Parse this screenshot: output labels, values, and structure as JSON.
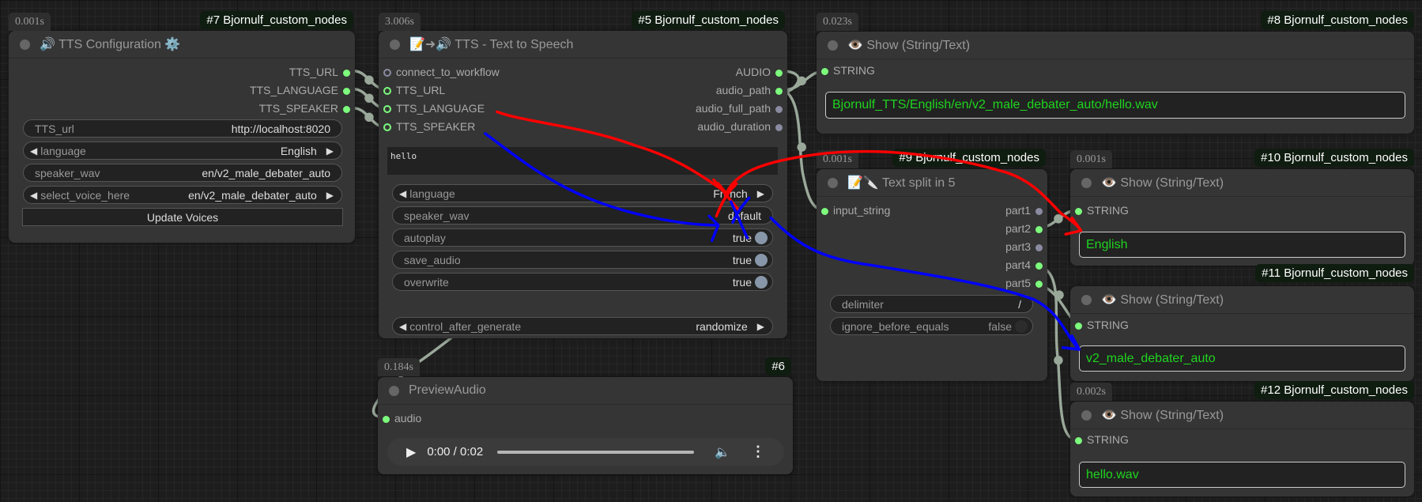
{
  "colors": {
    "connected_slot": "#7dfc7d",
    "unconnected_slot": "#8a8aa0",
    "output_text": "#1fd51f",
    "annotation_red": "#ff0000",
    "annotation_blue": "#0000ff",
    "link": "#9aa89a"
  },
  "node7": {
    "time": "0.001s",
    "badge": "#7 Bjornulf_custom_nodes",
    "title": "🔊 TTS Configuration ⚙️",
    "outputs": [
      "TTS_URL",
      "TTS_LANGUAGE",
      "TTS_SPEAKER"
    ],
    "widgets": [
      {
        "label": "TTS_url",
        "value": "http://localhost:8020"
      },
      {
        "label": "language",
        "value": "English"
      },
      {
        "label": "speaker_wav",
        "value": "en/v2_male_debater_auto"
      },
      {
        "label": "select_voice_here",
        "value": "en/v2_male_debater_auto"
      }
    ],
    "button": "Update Voices"
  },
  "node5": {
    "time": "3.006s",
    "badge": "#5 Bjornulf_custom_nodes",
    "title": "📝➜🔊 TTS - Text to Speech",
    "inputs": [
      "connect_to_workflow",
      "TTS_URL",
      "TTS_LANGUAGE",
      "TTS_SPEAKER"
    ],
    "outputs": [
      "AUDIO",
      "audio_path",
      "audio_full_path",
      "audio_duration"
    ],
    "text": "hello",
    "widgets": [
      {
        "label": "language",
        "value": "French"
      },
      {
        "label": "speaker_wav",
        "value": "default"
      },
      {
        "label": "autoplay",
        "value": "true"
      },
      {
        "label": "save_audio",
        "value": "true"
      },
      {
        "label": "overwrite",
        "value": "true"
      },
      {
        "label": "control_after_generate",
        "value": "randomize"
      }
    ]
  },
  "node6": {
    "time": "0.184s",
    "badge": "#6",
    "title": "PreviewAudio",
    "input": "audio",
    "player": {
      "time": "0:00 / 0:02",
      "progress": 0
    }
  },
  "node8": {
    "time": "0.023s",
    "badge": "#8 Bjornulf_custom_nodes",
    "title": "👁️ Show (String/Text)",
    "input": "STRING",
    "value": "Bjornulf_TTS/English/en/v2_male_debater_auto/hello.wav"
  },
  "node9": {
    "time": "0.001s",
    "badge": "#9 Bjornulf_custom_nodes",
    "title": "📝🔪 Text split in 5",
    "input": "input_string",
    "outputs": [
      "part1",
      "part2",
      "part3",
      "part4",
      "part5"
    ],
    "widgets": [
      {
        "label": "delimiter",
        "value": "/"
      },
      {
        "label": "ignore_before_equals",
        "value": "false"
      }
    ]
  },
  "node10": {
    "time": "0.001s",
    "badge": "#10 Bjornulf_custom_nodes",
    "title": "👁️ Show (String/Text)",
    "input": "STRING",
    "value": "English"
  },
  "node11": {
    "badge": "#11 Bjornulf_custom_nodes",
    "title": "👁️ Show (String/Text)",
    "input": "STRING",
    "value": "v2_male_debater_auto"
  },
  "node12": {
    "time": "0.002s",
    "badge": "#12 Bjornulf_custom_nodes",
    "title": "👁️ Show (String/Text)",
    "input": "STRING",
    "value": "hello.wav"
  }
}
